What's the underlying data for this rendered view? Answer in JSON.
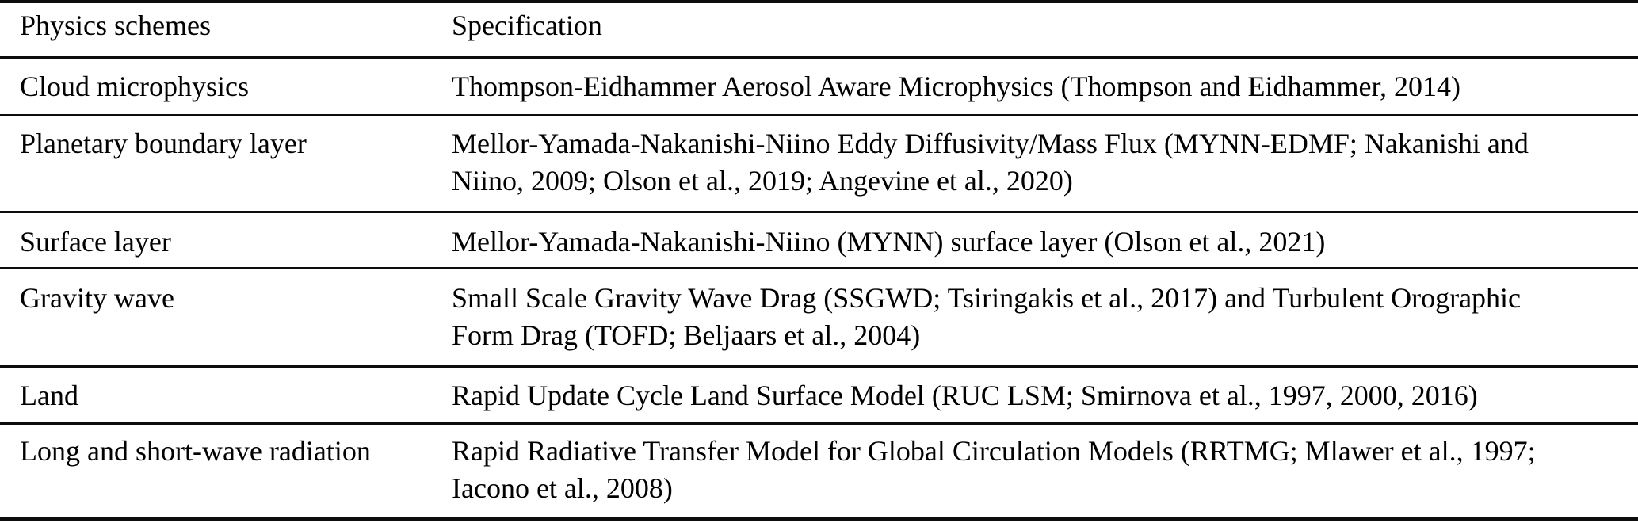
{
  "table": {
    "header": {
      "col1": "Physics schemes",
      "col2": "Specification"
    },
    "rows": [
      {
        "scheme": "Cloud microphysics",
        "spec": "Thompson-Eidhammer Aerosol Aware Microphysics (Thompson and Eidhammer, 2014)",
        "spec_lines": [
          "Thompson-Eidhammer Aerosol Aware Microphysics (Thompson and Eidhammer, 2014)"
        ]
      },
      {
        "scheme": "Planetary boundary layer",
        "spec": "Mellor-Yamada-Nakanishi-Niino Eddy Diffusivity/Mass Flux (MYNN-EDMF; Nakanishi and Niino, 2009; Olson et al., 2019; Angevine et al., 2020)",
        "spec_lines": [
          "Mellor-Yamada-Nakanishi-Niino Eddy Diffusivity/Mass Flux (MYNN-EDMF; Nakanishi and",
          "Niino, 2009; Olson et al., 2019; Angevine et al., 2020)"
        ]
      },
      {
        "scheme": "Surface layer",
        "spec": "Mellor-Yamada-Nakanishi-Niino (MYNN) surface layer (Olson et al., 2021)",
        "spec_lines": [
          "Mellor-Yamada-Nakanishi-Niino (MYNN) surface layer (Olson et al., 2021)"
        ]
      },
      {
        "scheme": "Gravity wave",
        "spec": "Small Scale Gravity Wave Drag (SSGWD; Tsiringakis et al., 2017) and Turbulent Orographic Form Drag (TOFD; Beljaars et al., 2004)",
        "spec_lines": [
          "Small Scale Gravity Wave Drag (SSGWD; Tsiringakis et al., 2017) and Turbulent Orographic",
          "Form Drag (TOFD; Beljaars et al., 2004)"
        ]
      },
      {
        "scheme": "Land",
        "spec": "Rapid Update Cycle Land Surface Model (RUC LSM; Smirnova et al., 1997, 2000, 2016)",
        "spec_lines": [
          "Rapid Update Cycle Land Surface Model (RUC LSM; Smirnova et al., 1997, 2000, 2016)"
        ]
      },
      {
        "scheme": "Long and short-wave radiation",
        "spec": "Rapid Radiative Transfer Model for Global Circulation Models (RRTMG; Mlawer et al., 1997; Iacono et al., 2008)",
        "spec_lines": [
          "Rapid Radiative Transfer Model for Global Circulation Models (RRTMG; Mlawer et al., 1997;",
          "Iacono et al., 2008)"
        ]
      }
    ],
    "colors": {
      "text": "#000000",
      "rule": "#0d0d0d",
      "background": "#ffffff"
    }
  }
}
